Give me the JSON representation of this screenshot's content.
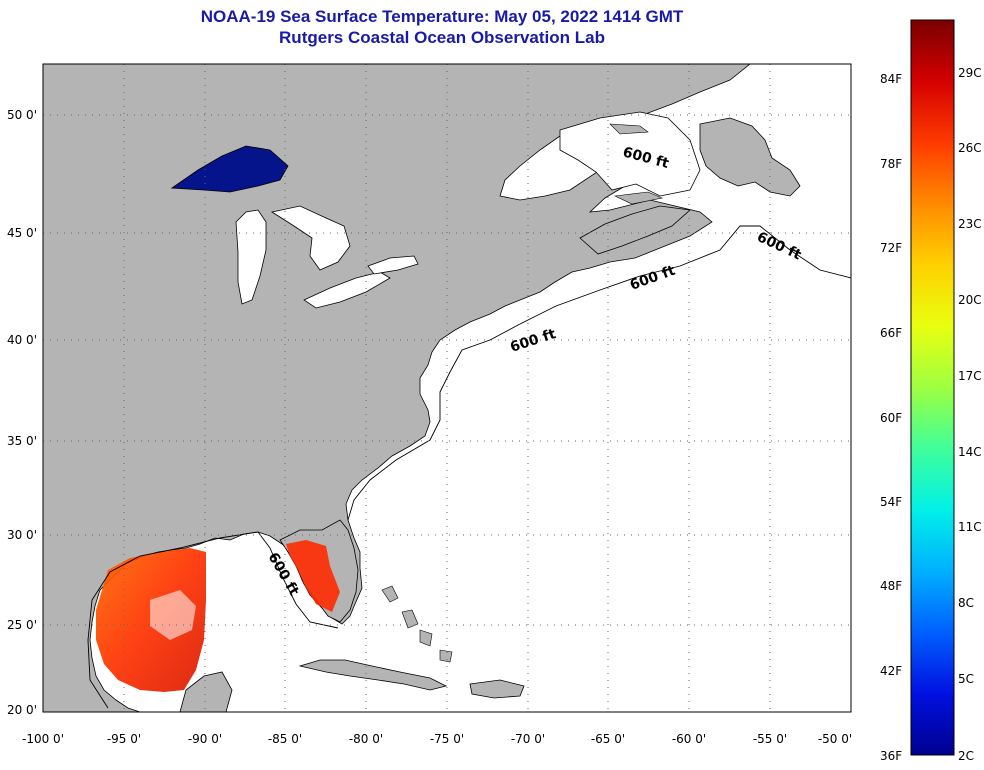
{
  "header": {
    "title": "NOAA-19 Sea Surface Temperature:  May 05, 2022 1414 GMT",
    "subtitle": "Rutgers Coastal Ocean Observation Lab"
  },
  "map": {
    "lon_range": [
      -100,
      -50
    ],
    "lat_range": [
      20,
      52.5
    ],
    "lon_ticks": [
      "-100 0'",
      "-95 0'",
      "-90 0'",
      "-85 0'",
      "-80 0'",
      "-75 0'",
      "-70 0'",
      "-65 0'",
      "-60 0'",
      "-55 0'",
      "-50 0'"
    ],
    "lat_ticks": [
      "50 0'",
      "45 0'",
      "40 0'",
      "35 0'",
      "30 0'",
      "25 0'",
      "20 0'"
    ],
    "grid": "dotted",
    "land_color": "#b4b4b4",
    "ocean_color": "#ffffff",
    "isobath_labels": [
      "600 ft",
      "600 ft",
      "600 ft",
      "600 ft",
      "600 ft"
    ]
  },
  "colorbar": {
    "fahrenheit_labels": [
      "84F",
      "78F",
      "72F",
      "66F",
      "60F",
      "54F",
      "48F",
      "42F",
      "36F"
    ],
    "celsius_labels": [
      "29C",
      "26C",
      "23C",
      "20C",
      "17C",
      "14C",
      "11C",
      "8C",
      "5C",
      "2C"
    ],
    "colors": [
      "#7a0000",
      "#d40000",
      "#ff3a00",
      "#ff8a00",
      "#ffd000",
      "#e8ff10",
      "#9eff40",
      "#40ff9a",
      "#00f0e8",
      "#00b0ff",
      "#0060ff",
      "#0010e0",
      "#000090"
    ]
  }
}
